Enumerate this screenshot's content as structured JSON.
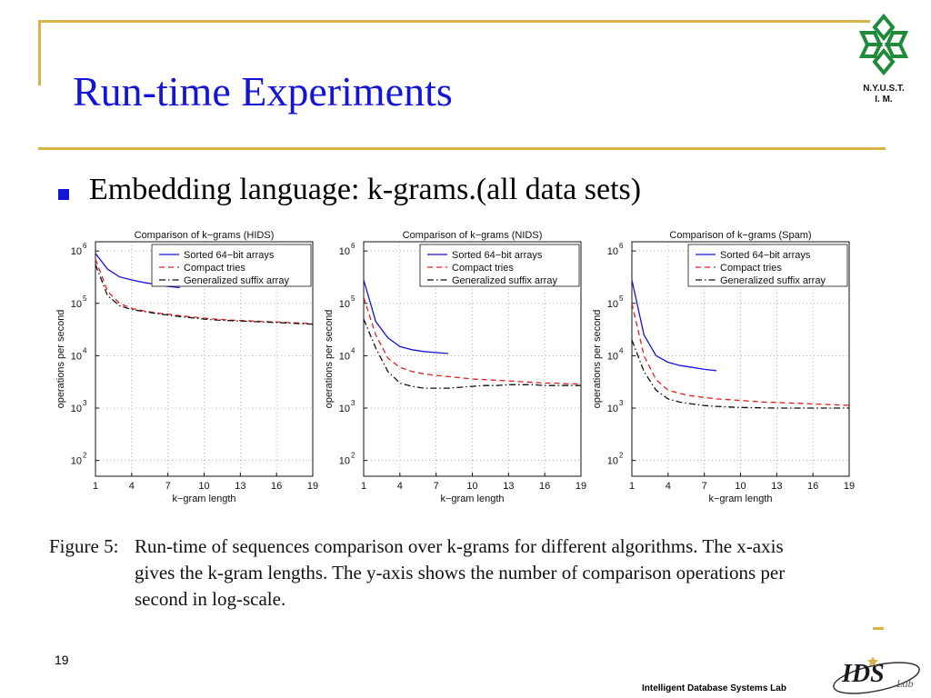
{
  "slide": {
    "title": "Run-time Experiments",
    "bullet": "Embedding language: k-grams.(all data sets)",
    "logo_text_line1": "N.Y.U.S.T.",
    "logo_text_line2": "I. M.",
    "page_number": "19",
    "lab_name": "Intelligent Database Systems Lab",
    "colors": {
      "title": "#1414d6",
      "rule": "#d7b34a",
      "logo": "#1f8a3a"
    }
  },
  "caption": {
    "label": "Figure 5:",
    "line1": "Run-time of sequences comparison over k-grams for different algorithms.  The x-axis",
    "line2": "gives the k-gram lengths.  The y-axis shows the number of comparison operations per",
    "line3": "second in log-scale."
  },
  "chart_data": [
    {
      "type": "line",
      "title": "Comparison of k−grams (HIDS)",
      "xlabel": "k−gram length",
      "ylabel": "operations per second",
      "x_ticks": [
        1,
        4,
        7,
        10,
        13,
        16,
        19
      ],
      "y_ticks": [
        "10",
        "10",
        "10",
        "10",
        "10"
      ],
      "y_tick_exponents": [
        "2",
        "3",
        "4",
        "5",
        "6"
      ],
      "y_scale": "log",
      "xlim": [
        1,
        19
      ],
      "ylim": [
        50,
        1500000
      ],
      "grid": true,
      "legend_position": "top-right",
      "series": [
        {
          "name": "Sorted 64−bit arrays",
          "color": "#1414d6",
          "dash": "solid",
          "x": [
            1,
            2,
            3,
            4,
            5,
            6,
            7,
            8
          ],
          "y": [
            900000,
            450000,
            320000,
            280000,
            250000,
            230000,
            210000,
            200000
          ]
        },
        {
          "name": "Compact tries",
          "color": "#e02020",
          "dash": "dashed",
          "x": [
            1,
            2,
            3,
            4,
            5,
            6,
            7,
            8,
            9,
            10,
            11,
            12,
            13,
            14,
            15,
            16,
            17,
            18,
            19
          ],
          "y": [
            700000,
            170000,
            100000,
            80000,
            72000,
            66000,
            62000,
            58000,
            55000,
            52000,
            50000,
            48000,
            47000,
            46000,
            45000,
            44000,
            43000,
            42000,
            41000
          ]
        },
        {
          "name": "Generalized suffix array",
          "color": "#111111",
          "dash": "dashdot",
          "x": [
            1,
            2,
            3,
            4,
            5,
            6,
            7,
            8,
            9,
            10,
            11,
            12,
            13,
            14,
            15,
            16,
            17,
            18,
            19
          ],
          "y": [
            550000,
            140000,
            90000,
            76000,
            70000,
            64000,
            60000,
            56000,
            53000,
            50000,
            48000,
            47000,
            46000,
            45000,
            44000,
            43000,
            42000,
            41000,
            40000
          ]
        }
      ]
    },
    {
      "type": "line",
      "title": "Comparison of k−grams (NIDS)",
      "xlabel": "k−gram length",
      "ylabel": "operations per second",
      "x_ticks": [
        1,
        4,
        7,
        10,
        13,
        16,
        19
      ],
      "y_ticks": [
        "10",
        "10",
        "10",
        "10",
        "10"
      ],
      "y_tick_exponents": [
        "2",
        "3",
        "4",
        "5",
        "6"
      ],
      "y_scale": "log",
      "xlim": [
        1,
        19
      ],
      "ylim": [
        50,
        1500000
      ],
      "grid": true,
      "legend_position": "top-right",
      "series": [
        {
          "name": "Sorted 64−bit arrays",
          "color": "#1414d6",
          "dash": "solid",
          "x": [
            1,
            2,
            3,
            4,
            5,
            6,
            7,
            8
          ],
          "y": [
            280000,
            45000,
            22000,
            15000,
            13000,
            12000,
            11500,
            11000
          ]
        },
        {
          "name": "Compact tries",
          "color": "#e02020",
          "dash": "dashed",
          "x": [
            1,
            2,
            3,
            4,
            5,
            6,
            7,
            8,
            9,
            10,
            11,
            12,
            13,
            14,
            15,
            16,
            17,
            18,
            19
          ],
          "y": [
            130000,
            25000,
            9000,
            6000,
            5000,
            4500,
            4200,
            4000,
            3800,
            3600,
            3500,
            3400,
            3300,
            3200,
            3100,
            3000,
            3000,
            2900,
            2900
          ]
        },
        {
          "name": "Generalized suffix array",
          "color": "#111111",
          "dash": "dashdot",
          "x": [
            1,
            2,
            3,
            4,
            5,
            6,
            7,
            8,
            9,
            10,
            11,
            12,
            13,
            14,
            15,
            16,
            17,
            18,
            19
          ],
          "y": [
            50000,
            14000,
            5000,
            3000,
            2600,
            2400,
            2400,
            2400,
            2500,
            2600,
            2700,
            2700,
            2800,
            2800,
            2800,
            2700,
            2700,
            2700,
            2700
          ]
        }
      ]
    },
    {
      "type": "line",
      "title": "Comparison of k−grams (Spam)",
      "xlabel": "k−gram length",
      "ylabel": "operations per second",
      "x_ticks": [
        1,
        4,
        7,
        10,
        13,
        16,
        19
      ],
      "y_ticks": [
        "10",
        "10",
        "10",
        "10",
        "10"
      ],
      "y_tick_exponents": [
        "2",
        "3",
        "4",
        "5",
        "6"
      ],
      "y_scale": "log",
      "xlim": [
        1,
        19
      ],
      "ylim": [
        50,
        1500000
      ],
      "grid": true,
      "legend_position": "top-right",
      "series": [
        {
          "name": "Sorted 64−bit arrays",
          "color": "#1414d6",
          "dash": "solid",
          "x": [
            1,
            2,
            3,
            4,
            5,
            6,
            7,
            8
          ],
          "y": [
            280000,
            25000,
            10000,
            7500,
            6500,
            6000,
            5500,
            5200
          ]
        },
        {
          "name": "Compact tries",
          "color": "#e02020",
          "dash": "dashed",
          "x": [
            1,
            2,
            3,
            4,
            5,
            6,
            7,
            8,
            9,
            10,
            11,
            12,
            13,
            14,
            15,
            16,
            17,
            18,
            19
          ],
          "y": [
            100000,
            10000,
            3500,
            2200,
            1900,
            1700,
            1600,
            1500,
            1450,
            1400,
            1350,
            1300,
            1280,
            1250,
            1230,
            1200,
            1180,
            1150,
            1130
          ]
        },
        {
          "name": "Generalized suffix array",
          "color": "#111111",
          "dash": "dashdot",
          "x": [
            1,
            2,
            3,
            4,
            5,
            6,
            7,
            8,
            9,
            10,
            11,
            12,
            13,
            14,
            15,
            16,
            17,
            18,
            19
          ],
          "y": [
            20000,
            5000,
            2200,
            1500,
            1300,
            1200,
            1120,
            1080,
            1050,
            1030,
            1020,
            1010,
            1000,
            1000,
            1000,
            1000,
            1000,
            1000,
            1000
          ]
        }
      ]
    }
  ]
}
